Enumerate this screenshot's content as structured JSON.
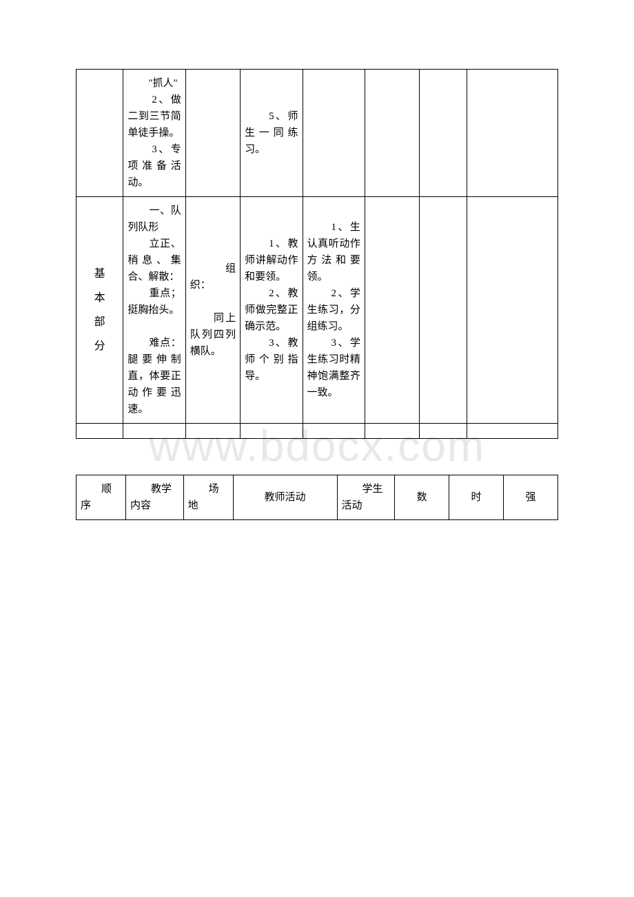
{
  "watermark": "www.bdocx.com",
  "table1": {
    "row1": {
      "c2": "　　\"抓人\"\n　　2、做二到三节简单徒手操。\n　　3、专项准备活动。",
      "c4": "　　5、师生一同练习。"
    },
    "row2": {
      "c1": "基\n本\n部\n分",
      "c2": "　　一、队列队形\n　　立正、稍息、集合、解散：\n　　重点；挺胸抬头。\n\n　　难点：腿要伸制直，体要正动作要迅速。",
      "c3": "　　组织：\n\n　　同上队列四列横队。",
      "c4": "　　1、教师讲解动作和要领。\n　　2、教师做完整正确示范。\n　　3、教师个别指导。",
      "c5": "　　1、生认真听动作方法和要领。\n　　2、学生练习，分组练习。\n　　3、学生练习时精神饱满整齐一致。"
    }
  },
  "table2": {
    "headers": {
      "c1": "　　顺序",
      "c2": "　　教学内容",
      "c3": "　　场地",
      "c4": "教师活动",
      "c5": "　　学生活动",
      "c6": "数",
      "c7": "时",
      "c8": "强"
    }
  }
}
